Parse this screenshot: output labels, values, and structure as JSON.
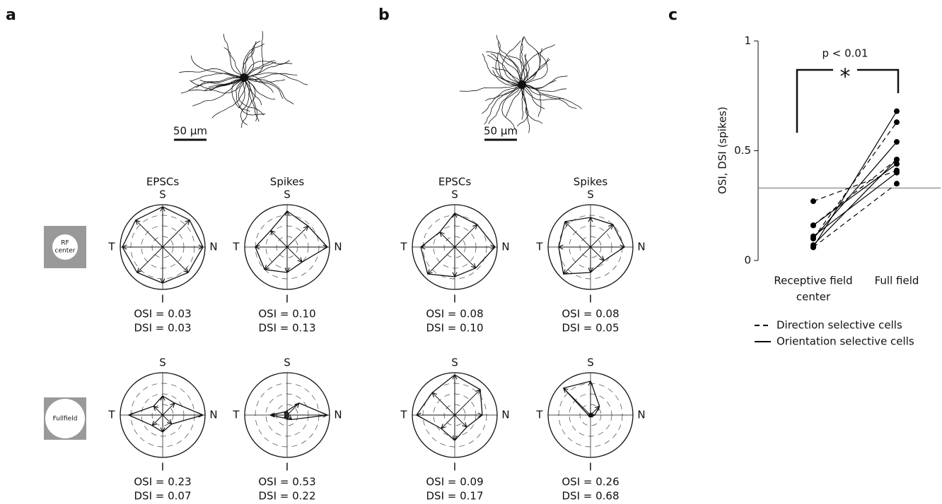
{
  "panel_labels": [
    "a",
    "b",
    "c"
  ],
  "neurons": [
    {
      "scale_bar": "50 µm"
    },
    {
      "scale_bar": "50 µm"
    }
  ],
  "stimuli": [
    [
      "RF",
      "center"
    ],
    [
      "Fullfield"
    ]
  ],
  "chart_data": [
    {
      "type": "polar",
      "title": "EPSCs",
      "categories": [
        "S",
        null,
        "N",
        null,
        "I",
        null,
        "T",
        null
      ],
      "values": [
        0.95,
        0.9,
        0.95,
        0.85,
        0.85,
        0.85,
        0.95,
        0.9
      ],
      "rlim": [
        0,
        1
      ],
      "rings": 3,
      "stats": [
        "OSI = 0.03",
        "DSI = 0.03"
      ]
    },
    {
      "type": "polar",
      "title": "Spikes",
      "categories": [
        "S",
        null,
        "N",
        null,
        "I",
        null,
        "T",
        null
      ],
      "values": [
        0.85,
        0.7,
        0.95,
        0.5,
        0.6,
        0.75,
        0.75,
        0.55
      ],
      "rlim": [
        0,
        1
      ],
      "rings": 3,
      "stats": [
        "OSI = 0.10",
        "DSI = 0.13"
      ]
    },
    {
      "type": "polar",
      "categories": [
        "S",
        null,
        "N",
        null,
        "I",
        null,
        "T",
        null
      ],
      "values": [
        0.45,
        0.4,
        0.95,
        0.3,
        0.4,
        0.35,
        0.8,
        0.3
      ],
      "rlim": [
        0,
        1
      ],
      "rings": 3,
      "stats": [
        "OSI = 0.23",
        "DSI = 0.07"
      ]
    },
    {
      "type": "polar",
      "categories": [
        "S",
        null,
        "N",
        null,
        "I",
        null,
        "T",
        null
      ],
      "values": [
        0.1,
        0.4,
        0.95,
        0.15,
        0.1,
        0.1,
        0.4,
        0.1
      ],
      "rlim": [
        0,
        1
      ],
      "rings": 3,
      "stats": [
        "OSI = 0.53",
        "DSI = 0.22"
      ]
    },
    {
      "type": "polar",
      "title": "EPSCs",
      "categories": [
        "S",
        null,
        "N",
        null,
        "I",
        null,
        "T",
        null
      ],
      "values": [
        0.8,
        0.75,
        0.95,
        0.7,
        0.7,
        0.9,
        0.8,
        0.5
      ],
      "rlim": [
        0,
        1
      ],
      "rings": 3,
      "stats": [
        "OSI = 0.08",
        "DSI = 0.10"
      ]
    },
    {
      "type": "polar",
      "title": "Spikes",
      "categories": [
        "S",
        null,
        "N",
        null,
        "I",
        null,
        "T",
        null
      ],
      "values": [
        0.7,
        0.75,
        0.8,
        0.45,
        0.6,
        0.9,
        0.75,
        0.85
      ],
      "rlim": [
        0,
        1
      ],
      "rings": 3,
      "stats": [
        "OSI = 0.08",
        "DSI = 0.05"
      ]
    },
    {
      "type": "polar",
      "categories": [
        "S",
        null,
        "N",
        null,
        "I",
        null,
        "T",
        null
      ],
      "values": [
        0.95,
        0.85,
        0.65,
        0.4,
        0.6,
        0.45,
        0.9,
        0.75
      ],
      "rlim": [
        0,
        1
      ],
      "rings": 3,
      "stats": [
        "OSI = 0.09",
        "DSI = 0.17"
      ]
    },
    {
      "type": "polar",
      "categories": [
        "S",
        null,
        "N",
        null,
        "I",
        null,
        "T",
        null
      ],
      "values": [
        0.8,
        0.3,
        0.1,
        0.05,
        0.05,
        0.05,
        0.05,
        0.9
      ],
      "rlim": [
        0,
        1
      ],
      "rings": 3,
      "stats": [
        "OSI = 0.26",
        "DSI = 0.68"
      ]
    },
    {
      "type": "slope",
      "categories": [
        [
          "Receptive field",
          "center"
        ],
        [
          "Full field"
        ]
      ],
      "ylabel": "OSI, DSI (spikes)",
      "ylim": [
        0,
        1
      ],
      "yticks": [
        0,
        0.5,
        1
      ],
      "hline": 0.33,
      "hline_color": "#888888",
      "annotations": [
        "p < 0.01",
        "*"
      ],
      "series": [
        {
          "name": "Direction selective cells",
          "dashed": true,
          "color": "#000000",
          "values": [
            [
              0.27,
              0.41
            ],
            [
              0.1,
              0.63
            ],
            [
              0.06,
              0.35
            ],
            [
              0.16,
              0.46
            ]
          ]
        },
        {
          "name": "Orientation selective cells",
          "dashed": false,
          "color": "#000000",
          "values": [
            [
              0.06,
              0.68
            ],
            [
              0.1,
              0.54
            ],
            [
              0.07,
              0.46
            ],
            [
              0.16,
              0.44
            ],
            [
              0.11,
              0.4
            ]
          ]
        }
      ]
    }
  ]
}
